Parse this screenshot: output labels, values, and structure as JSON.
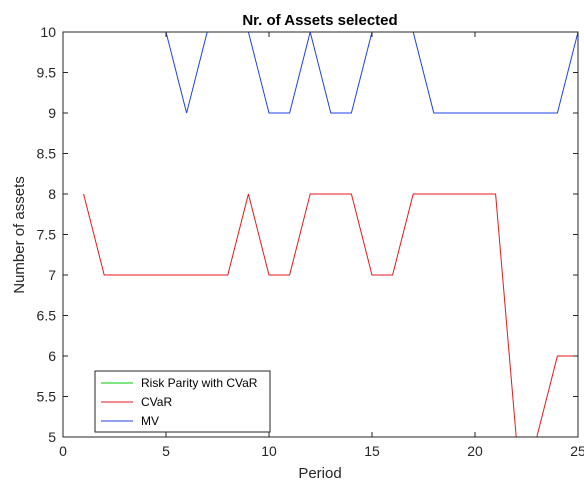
{
  "chart_data": {
    "type": "line",
    "title": "Nr. of Assets selected",
    "xlabel": "Period",
    "ylabel": "Number of assets",
    "xlim": [
      0,
      25
    ],
    "ylim": [
      5,
      10
    ],
    "x_ticks": [
      0,
      5,
      10,
      15,
      20,
      25
    ],
    "y_ticks": [
      5,
      5.5,
      6,
      6.5,
      7,
      7.5,
      8,
      8.5,
      9,
      9.5,
      10
    ],
    "x_tick_labels": [
      "0",
      "5",
      "10",
      "15",
      "20",
      "25"
    ],
    "y_tick_labels": [
      "5",
      "5.5",
      "6",
      "6.5",
      "7",
      "7.5",
      "8",
      "8.5",
      "9",
      "9.5",
      "10"
    ],
    "grid": false,
    "legend_position": "bottom-left",
    "x": [
      1,
      2,
      3,
      4,
      5,
      6,
      7,
      8,
      9,
      10,
      11,
      12,
      13,
      14,
      15,
      16,
      17,
      18,
      19,
      20,
      21,
      22,
      23,
      24,
      25
    ],
    "series": [
      {
        "name": "Risk Parity with CVaR",
        "color": "#00c800",
        "values": [
          10,
          10,
          10,
          10,
          10,
          10,
          10,
          10,
          10,
          10,
          10,
          10,
          10,
          10,
          10,
          10,
          10,
          10,
          10,
          10,
          10,
          10,
          10,
          10,
          10
        ]
      },
      {
        "name": "CVaR",
        "color": "#e61919",
        "values": [
          8,
          7,
          7,
          7,
          7,
          7,
          7,
          7,
          8,
          7,
          7,
          8,
          8,
          8,
          7,
          7,
          8,
          8,
          8,
          8,
          8,
          5,
          5,
          6,
          6
        ]
      },
      {
        "name": "MV",
        "color": "#1f3fe6",
        "values": [
          10,
          10,
          10,
          10,
          10,
          9,
          10,
          10,
          10,
          9,
          9,
          10,
          9,
          9,
          10,
          10,
          10,
          9,
          9,
          9,
          9,
          9,
          9,
          9,
          10
        ]
      }
    ]
  }
}
